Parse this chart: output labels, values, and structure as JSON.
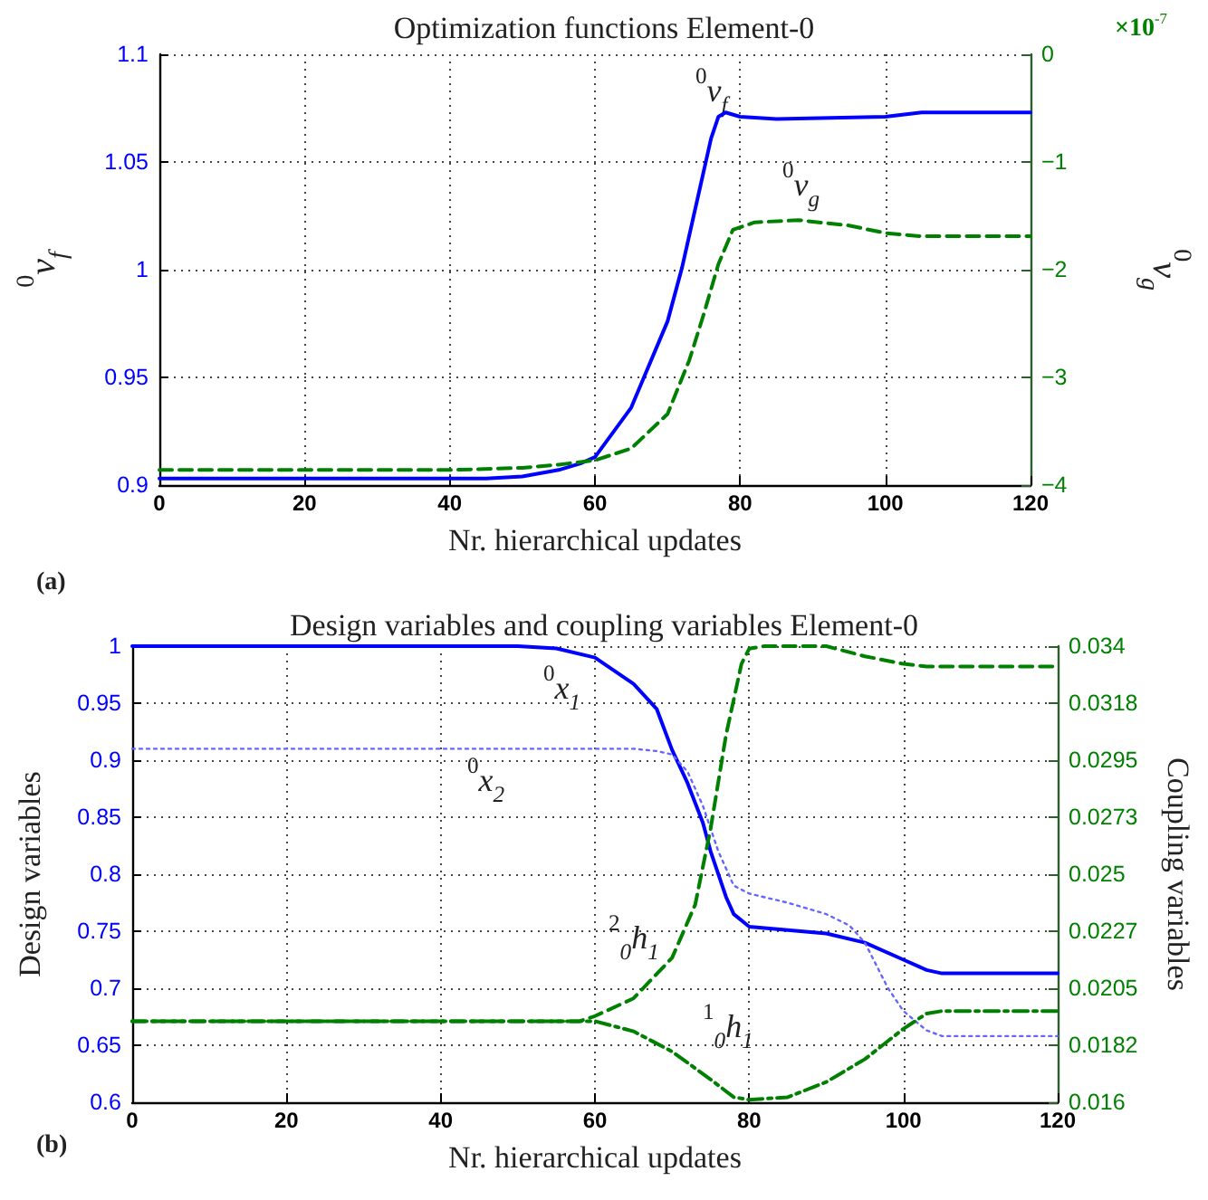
{
  "chart_data": [
    {
      "type": "line",
      "title": "Optimization functions Element-0",
      "xlabel": "Nr. hierarchical updates",
      "ylabel": "$^{0}$v$_{f}$",
      "y2label": "$^{0}$v$_{g}$",
      "annotations": [
        "(a)",
        "×10$^{-7}$"
      ],
      "xlim": [
        0,
        120
      ],
      "xticks": [
        0,
        20,
        40,
        60,
        80,
        100,
        120
      ],
      "ylim": [
        0.9,
        1.1
      ],
      "yticks": [
        0.9,
        0.95,
        1,
        1.05,
        1.1
      ],
      "y2lim": [
        -4,
        0
      ],
      "y2ticks": [
        {
          "value": -4,
          "label": "−4"
        },
        {
          "value": -3,
          "label": "−3"
        },
        {
          "value": -2,
          "label": "−2"
        },
        {
          "value": -1,
          "label": "−1"
        },
        0
      ],
      "grid": true,
      "marker": "none",
      "series": [
        {
          "name": "$^{0}$v$_{f}$",
          "color": "#0000ff",
          "line_style": "solid",
          "x": [
            0,
            20,
            40,
            45,
            50,
            55,
            58,
            60,
            65,
            70,
            72,
            74,
            76,
            77,
            78,
            80,
            85,
            100,
            105,
            120
          ],
          "values": [
            0.903,
            0.903,
            0.903,
            0.903,
            0.904,
            0.907,
            0.91,
            0.913,
            0.936,
            0.976,
            1.001,
            1.031,
            1.061,
            1.071,
            1.073,
            1.071,
            1.07,
            1.071,
            1.073,
            1.073
          ]
        },
        {
          "name": "$^{0}$v$_{g}$",
          "color": "#008000",
          "line_style": "dashed",
          "axis": "y2",
          "x": [
            0,
            20,
            40,
            50,
            55,
            60,
            65,
            70,
            73,
            75,
            77,
            79,
            82,
            88,
            95,
            100,
            105,
            120
          ],
          "values": [
            -3.86,
            -3.86,
            -3.86,
            -3.84,
            -3.81,
            -3.77,
            -3.66,
            -3.34,
            -2.84,
            -2.41,
            -1.95,
            -1.63,
            -1.56,
            -1.54,
            -1.59,
            -1.66,
            -1.69,
            -1.69
          ]
        }
      ]
    },
    {
      "type": "line",
      "title": "Design variables and coupling variables Element-0",
      "xlabel": "Nr. hierarchical updates",
      "ylabel": "Design variables",
      "y2label": "Coupling variables",
      "annotations": [
        "(b)"
      ],
      "xlim": [
        0,
        120
      ],
      "xticks": [
        0,
        20,
        40,
        60,
        80,
        100,
        120
      ],
      "ylim": [
        0.6,
        1
      ],
      "yticks": [
        0.6,
        0.65,
        0.7,
        0.75,
        0.8,
        0.85,
        0.9,
        0.95,
        1
      ],
      "y2lim": [
        0.016,
        0.034
      ],
      "y2ticks": [
        0.016,
        {
          "value": 0.01825,
          "label": "0.0182"
        },
        0.0205,
        {
          "value": 0.02275,
          "label": "0.0227"
        },
        0.025,
        {
          "value": 0.02725,
          "label": "0.0273"
        },
        0.0295,
        {
          "value": 0.03175,
          "label": "0.0318"
        },
        0.034
      ],
      "grid": true,
      "marker": "none",
      "series": [
        {
          "name": "$^{0}$x$_{1}$",
          "color": "#0000ff",
          "line_style": "solid",
          "x": [
            0,
            20,
            40,
            50,
            55,
            60,
            65,
            68,
            70,
            72,
            74,
            75,
            77,
            78,
            80,
            85,
            90,
            95,
            100,
            103,
            105,
            120
          ],
          "values": [
            1,
            1,
            1,
            1,
            0.998,
            0.99,
            0.967,
            0.945,
            0.909,
            0.88,
            0.845,
            0.82,
            0.78,
            0.765,
            0.754,
            0.751,
            0.748,
            0.74,
            0.725,
            0.716,
            0.713,
            0.713
          ]
        },
        {
          "name": "$^{0}$x$_{2}$",
          "color": "#6666ff",
          "line_style": "dotted",
          "x": [
            0,
            20,
            40,
            60,
            65,
            68,
            70,
            72,
            74,
            76,
            78,
            80,
            85,
            90,
            93,
            95,
            98,
            100,
            103,
            105,
            120
          ],
          "values": [
            0.91,
            0.91,
            0.91,
            0.91,
            0.91,
            0.908,
            0.905,
            0.89,
            0.86,
            0.82,
            0.79,
            0.783,
            0.775,
            0.765,
            0.755,
            0.74,
            0.7,
            0.68,
            0.663,
            0.658,
            0.658
          ]
        },
        {
          "name": "$^{2}$$_{0}$h$_{1}$",
          "color": "#008000",
          "line_style": "dashed",
          "axis": "y2",
          "x": [
            0,
            20,
            40,
            58,
            60,
            65,
            70,
            73,
            75,
            77,
            79,
            80,
            82,
            90,
            95,
            100,
            103,
            120
          ],
          "values": [
            0.0192,
            0.0192,
            0.0192,
            0.0192,
            0.0194,
            0.0201,
            0.0217,
            0.0238,
            0.0268,
            0.0305,
            0.0333,
            0.0339,
            0.034,
            0.034,
            0.0336,
            0.0333,
            0.0332,
            0.0332
          ]
        },
        {
          "name": "$^{1}$$_{0}$h$_{1}$",
          "color": "#008000",
          "line_style": "dashdot",
          "axis": "y2",
          "x": [
            0,
            20,
            40,
            58,
            60,
            65,
            70,
            75,
            78,
            80,
            85,
            90,
            95,
            100,
            103,
            105,
            120
          ],
          "values": [
            0.0192,
            0.0192,
            0.0192,
            0.0192,
            0.0192,
            0.0188,
            0.018,
            0.0169,
            0.0162,
            0.0161,
            0.0162,
            0.0168,
            0.0177,
            0.0189,
            0.0195,
            0.0196,
            0.0196
          ]
        }
      ]
    }
  ]
}
